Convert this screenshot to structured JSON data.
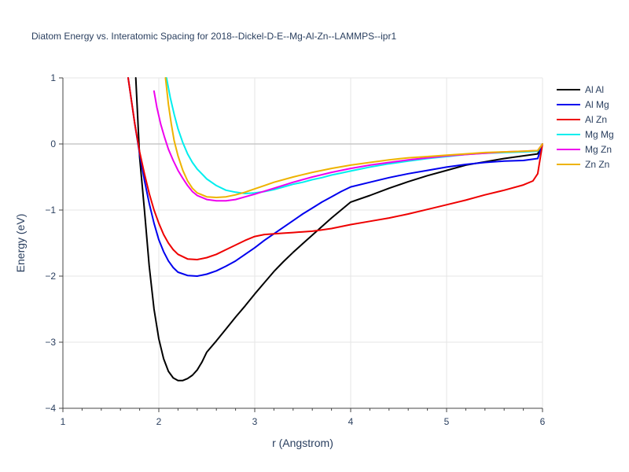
{
  "chart_data": {
    "type": "line",
    "title": "Diatom Energy vs. Interatomic Spacing for 2018--Dickel-D-E--Mg-Al-Zn--LAMMPS--ipr1",
    "xlabel": "r (Angstrom)",
    "ylabel": "Energy (eV)",
    "xlim": [
      1,
      6
    ],
    "ylim": [
      -4,
      1
    ],
    "xticks": [
      1,
      2,
      3,
      4,
      5,
      6
    ],
    "xtick_labels": [
      "1",
      "2",
      "3",
      "4",
      "5",
      "6"
    ],
    "yticks": [
      -4,
      -3,
      -2,
      -1,
      0,
      1
    ],
    "ytick_labels": [
      "−4",
      "−3",
      "−2",
      "−1",
      "0",
      "1"
    ],
    "grid": true,
    "legend_position": "top-right",
    "series": [
      {
        "name": "Al Al",
        "color": "#000000",
        "x": [
          1.76,
          1.8,
          1.85,
          1.9,
          1.95,
          2.0,
          2.05,
          2.1,
          2.15,
          2.2,
          2.25,
          2.3,
          2.35,
          2.4,
          2.45,
          2.5,
          2.6,
          2.7,
          2.8,
          2.9,
          3.0,
          3.1,
          3.2,
          3.3,
          3.4,
          3.5,
          3.6,
          3.7,
          3.8,
          3.9,
          4.0,
          4.2,
          4.4,
          4.6,
          4.8,
          5.0,
          5.2,
          5.4,
          5.6,
          5.8,
          5.95,
          6.0
        ],
        "y": [
          1.0,
          -0.2,
          -1.0,
          -1.85,
          -2.5,
          -2.95,
          -3.25,
          -3.44,
          -3.54,
          -3.58,
          -3.58,
          -3.55,
          -3.5,
          -3.42,
          -3.3,
          -3.15,
          -2.98,
          -2.8,
          -2.62,
          -2.45,
          -2.27,
          -2.1,
          -1.93,
          -1.78,
          -1.64,
          -1.51,
          -1.38,
          -1.25,
          -1.12,
          -1.0,
          -0.88,
          -0.78,
          -0.67,
          -0.57,
          -0.48,
          -0.4,
          -0.32,
          -0.27,
          -0.22,
          -0.18,
          -0.15,
          0.0
        ]
      },
      {
        "name": "Al Mg",
        "color": "#0000ee",
        "x": [
          1.68,
          1.75,
          1.8,
          1.85,
          1.9,
          1.95,
          2.0,
          2.05,
          2.1,
          2.15,
          2.2,
          2.3,
          2.4,
          2.5,
          2.6,
          2.7,
          2.8,
          2.9,
          3.0,
          3.1,
          3.2,
          3.3,
          3.4,
          3.5,
          3.6,
          3.7,
          3.8,
          3.9,
          4.0,
          4.2,
          4.4,
          4.6,
          4.8,
          5.0,
          5.2,
          5.4,
          5.6,
          5.8,
          5.95,
          6.0
        ],
        "y": [
          1.0,
          0.3,
          -0.15,
          -0.55,
          -0.9,
          -1.2,
          -1.45,
          -1.63,
          -1.77,
          -1.87,
          -1.94,
          -1.99,
          -2.0,
          -1.97,
          -1.92,
          -1.85,
          -1.77,
          -1.67,
          -1.57,
          -1.46,
          -1.36,
          -1.26,
          -1.16,
          -1.06,
          -0.97,
          -0.88,
          -0.8,
          -0.72,
          -0.65,
          -0.58,
          -0.51,
          -0.45,
          -0.4,
          -0.35,
          -0.31,
          -0.28,
          -0.26,
          -0.25,
          -0.22,
          0.0
        ]
      },
      {
        "name": "Al Zn",
        "color": "#ee0000",
        "x": [
          1.68,
          1.75,
          1.8,
          1.85,
          1.9,
          1.95,
          2.0,
          2.05,
          2.1,
          2.15,
          2.2,
          2.3,
          2.4,
          2.5,
          2.6,
          2.7,
          2.8,
          2.9,
          3.0,
          3.1,
          3.2,
          3.3,
          3.4,
          3.5,
          3.6,
          3.7,
          3.8,
          3.9,
          4.0,
          4.2,
          4.4,
          4.6,
          4.8,
          5.0,
          5.2,
          5.4,
          5.6,
          5.8,
          5.9,
          5.95,
          6.0
        ],
        "y": [
          1.0,
          0.3,
          -0.12,
          -0.45,
          -0.75,
          -1.0,
          -1.2,
          -1.37,
          -1.5,
          -1.6,
          -1.67,
          -1.74,
          -1.75,
          -1.72,
          -1.67,
          -1.6,
          -1.53,
          -1.46,
          -1.4,
          -1.37,
          -1.36,
          -1.35,
          -1.34,
          -1.33,
          -1.32,
          -1.3,
          -1.28,
          -1.25,
          -1.22,
          -1.17,
          -1.12,
          -1.06,
          -0.99,
          -0.92,
          -0.85,
          -0.77,
          -0.7,
          -0.62,
          -0.56,
          -0.45,
          0.0
        ]
      },
      {
        "name": "Mg Mg",
        "color": "#00eeee",
        "x": [
          2.08,
          2.12,
          2.16,
          2.2,
          2.25,
          2.3,
          2.35,
          2.4,
          2.5,
          2.6,
          2.7,
          2.8,
          2.9,
          3.0,
          3.1,
          3.2,
          3.3,
          3.4,
          3.5,
          3.6,
          3.7,
          3.8,
          3.9,
          4.0,
          4.2,
          4.4,
          4.6,
          4.8,
          5.0,
          5.2,
          5.4,
          5.6,
          5.8,
          5.95,
          6.0
        ],
        "y": [
          1.0,
          0.7,
          0.45,
          0.23,
          0.02,
          -0.15,
          -0.28,
          -0.38,
          -0.53,
          -0.63,
          -0.7,
          -0.73,
          -0.75,
          -0.74,
          -0.72,
          -0.69,
          -0.65,
          -0.61,
          -0.58,
          -0.54,
          -0.51,
          -0.47,
          -0.44,
          -0.41,
          -0.35,
          -0.3,
          -0.26,
          -0.22,
          -0.19,
          -0.16,
          -0.14,
          -0.13,
          -0.12,
          -0.11,
          0.0
        ]
      },
      {
        "name": "Mg Zn",
        "color": "#ee00ee",
        "x": [
          1.95,
          1.98,
          2.02,
          2.06,
          2.1,
          2.15,
          2.2,
          2.25,
          2.3,
          2.35,
          2.4,
          2.5,
          2.6,
          2.7,
          2.8,
          2.9,
          3.0,
          3.2,
          3.4,
          3.6,
          3.8,
          4.0,
          4.2,
          4.4,
          4.6,
          4.8,
          5.0,
          5.2,
          5.4,
          5.6,
          5.8,
          5.95,
          6.0
        ],
        "y": [
          0.8,
          0.55,
          0.3,
          0.1,
          -0.08,
          -0.25,
          -0.4,
          -0.52,
          -0.63,
          -0.72,
          -0.78,
          -0.84,
          -0.86,
          -0.86,
          -0.84,
          -0.8,
          -0.76,
          -0.67,
          -0.58,
          -0.5,
          -0.43,
          -0.37,
          -0.32,
          -0.28,
          -0.24,
          -0.21,
          -0.18,
          -0.16,
          -0.14,
          -0.12,
          -0.11,
          -0.1,
          0.0
        ]
      },
      {
        "name": "Zn Zn",
        "color": "#eeb300",
        "x": [
          2.07,
          2.1,
          2.13,
          2.16,
          2.2,
          2.25,
          2.3,
          2.35,
          2.4,
          2.5,
          2.6,
          2.7,
          2.8,
          2.9,
          3.0,
          3.1,
          3.2,
          3.4,
          3.6,
          3.8,
          4.0,
          4.2,
          4.4,
          4.6,
          4.8,
          5.0,
          5.2,
          5.4,
          5.6,
          5.8,
          5.95,
          6.0
        ],
        "y": [
          1.0,
          0.6,
          0.3,
          0.05,
          -0.18,
          -0.4,
          -0.56,
          -0.67,
          -0.74,
          -0.8,
          -0.81,
          -0.8,
          -0.77,
          -0.73,
          -0.68,
          -0.63,
          -0.58,
          -0.5,
          -0.43,
          -0.37,
          -0.32,
          -0.28,
          -0.24,
          -0.21,
          -0.19,
          -0.17,
          -0.15,
          -0.13,
          -0.12,
          -0.11,
          -0.1,
          0.0
        ]
      }
    ]
  }
}
